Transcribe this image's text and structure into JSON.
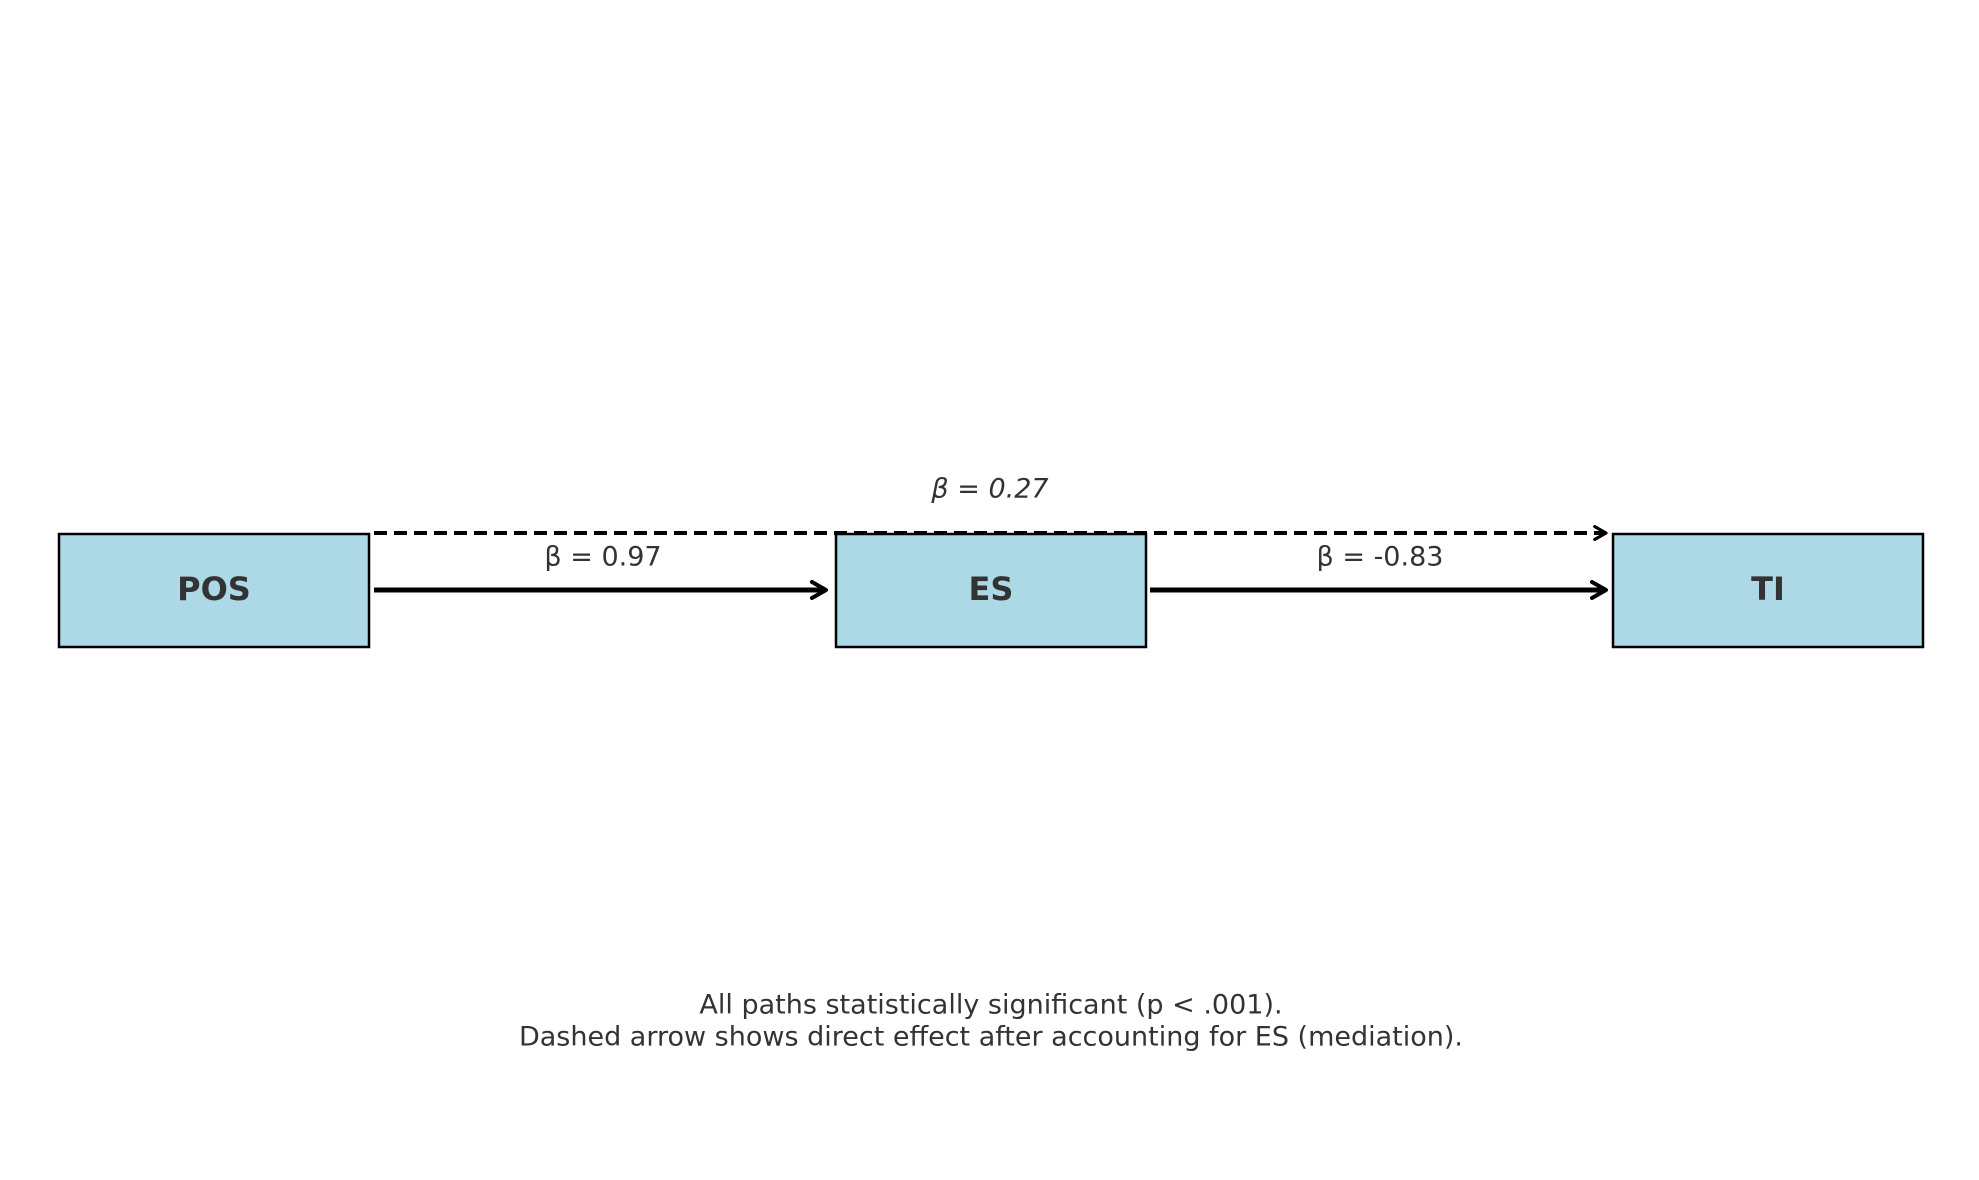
{
  "colors": {
    "node_fill": "#add8e6",
    "node_stroke": "#000000",
    "text": "#333333",
    "arrow": "#000000"
  },
  "nodes": {
    "pos": {
      "label": "POS"
    },
    "es": {
      "label": "ES"
    },
    "ti": {
      "label": "TI"
    }
  },
  "paths": {
    "pos_es": {
      "label": "β = 0.97",
      "style": "solid"
    },
    "es_ti": {
      "label": "β = -0.83",
      "style": "solid"
    },
    "pos_ti_direct": {
      "label": "β = 0.27",
      "style": "dashed"
    }
  },
  "footnote": {
    "line1": "All paths statistically significant (p < .001).",
    "line2": "Dashed arrow shows direct effect after accounting for ES (mediation)."
  }
}
